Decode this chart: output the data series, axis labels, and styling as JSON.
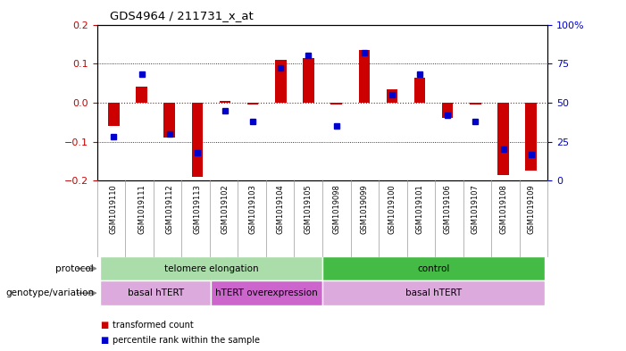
{
  "title": "GDS4964 / 211731_x_at",
  "samples": [
    "GSM1019110",
    "GSM1019111",
    "GSM1019112",
    "GSM1019113",
    "GSM1019102",
    "GSM1019103",
    "GSM1019104",
    "GSM1019105",
    "GSM1019098",
    "GSM1019099",
    "GSM1019100",
    "GSM1019101",
    "GSM1019106",
    "GSM1019107",
    "GSM1019108",
    "GSM1019109"
  ],
  "red_values": [
    -0.06,
    0.04,
    -0.09,
    -0.19,
    0.005,
    -0.005,
    0.11,
    0.115,
    -0.005,
    0.135,
    0.035,
    0.065,
    -0.04,
    -0.005,
    -0.185,
    -0.175
  ],
  "blue_values_pct": [
    28,
    68,
    30,
    18,
    45,
    38,
    72,
    80,
    35,
    82,
    55,
    68,
    42,
    38,
    20,
    17
  ],
  "ylim": [
    -0.2,
    0.2
  ],
  "y2lim": [
    0,
    100
  ],
  "yticks": [
    -0.2,
    -0.1,
    0.0,
    0.1,
    0.2
  ],
  "y2ticks": [
    0,
    25,
    50,
    75,
    100
  ],
  "y2ticklabels": [
    "0",
    "25",
    "50",
    "75",
    "100%"
  ],
  "red_color": "#cc0000",
  "blue_color": "#0000cc",
  "bar_width": 0.4,
  "protocol_groups": [
    {
      "label": "telomere elongation",
      "start": 0,
      "end": 7,
      "color": "#aaddaa"
    },
    {
      "label": "control",
      "start": 8,
      "end": 15,
      "color": "#44bb44"
    }
  ],
  "genotype_groups": [
    {
      "label": "basal hTERT",
      "start": 0,
      "end": 3,
      "color": "#ddaadd"
    },
    {
      "label": "hTERT overexpression",
      "start": 4,
      "end": 7,
      "color": "#cc66cc"
    },
    {
      "label": "basal hTERT",
      "start": 8,
      "end": 15,
      "color": "#ddaadd"
    }
  ],
  "protocol_label": "protocol",
  "genotype_label": "genotype/variation",
  "legend_red": "transformed count",
  "legend_blue": "percentile rank within the sample",
  "tick_label_color_left": "#cc0000",
  "tick_label_color_right": "#0000cc",
  "label_cell_color": "#cccccc",
  "label_cell_edge": "#999999"
}
